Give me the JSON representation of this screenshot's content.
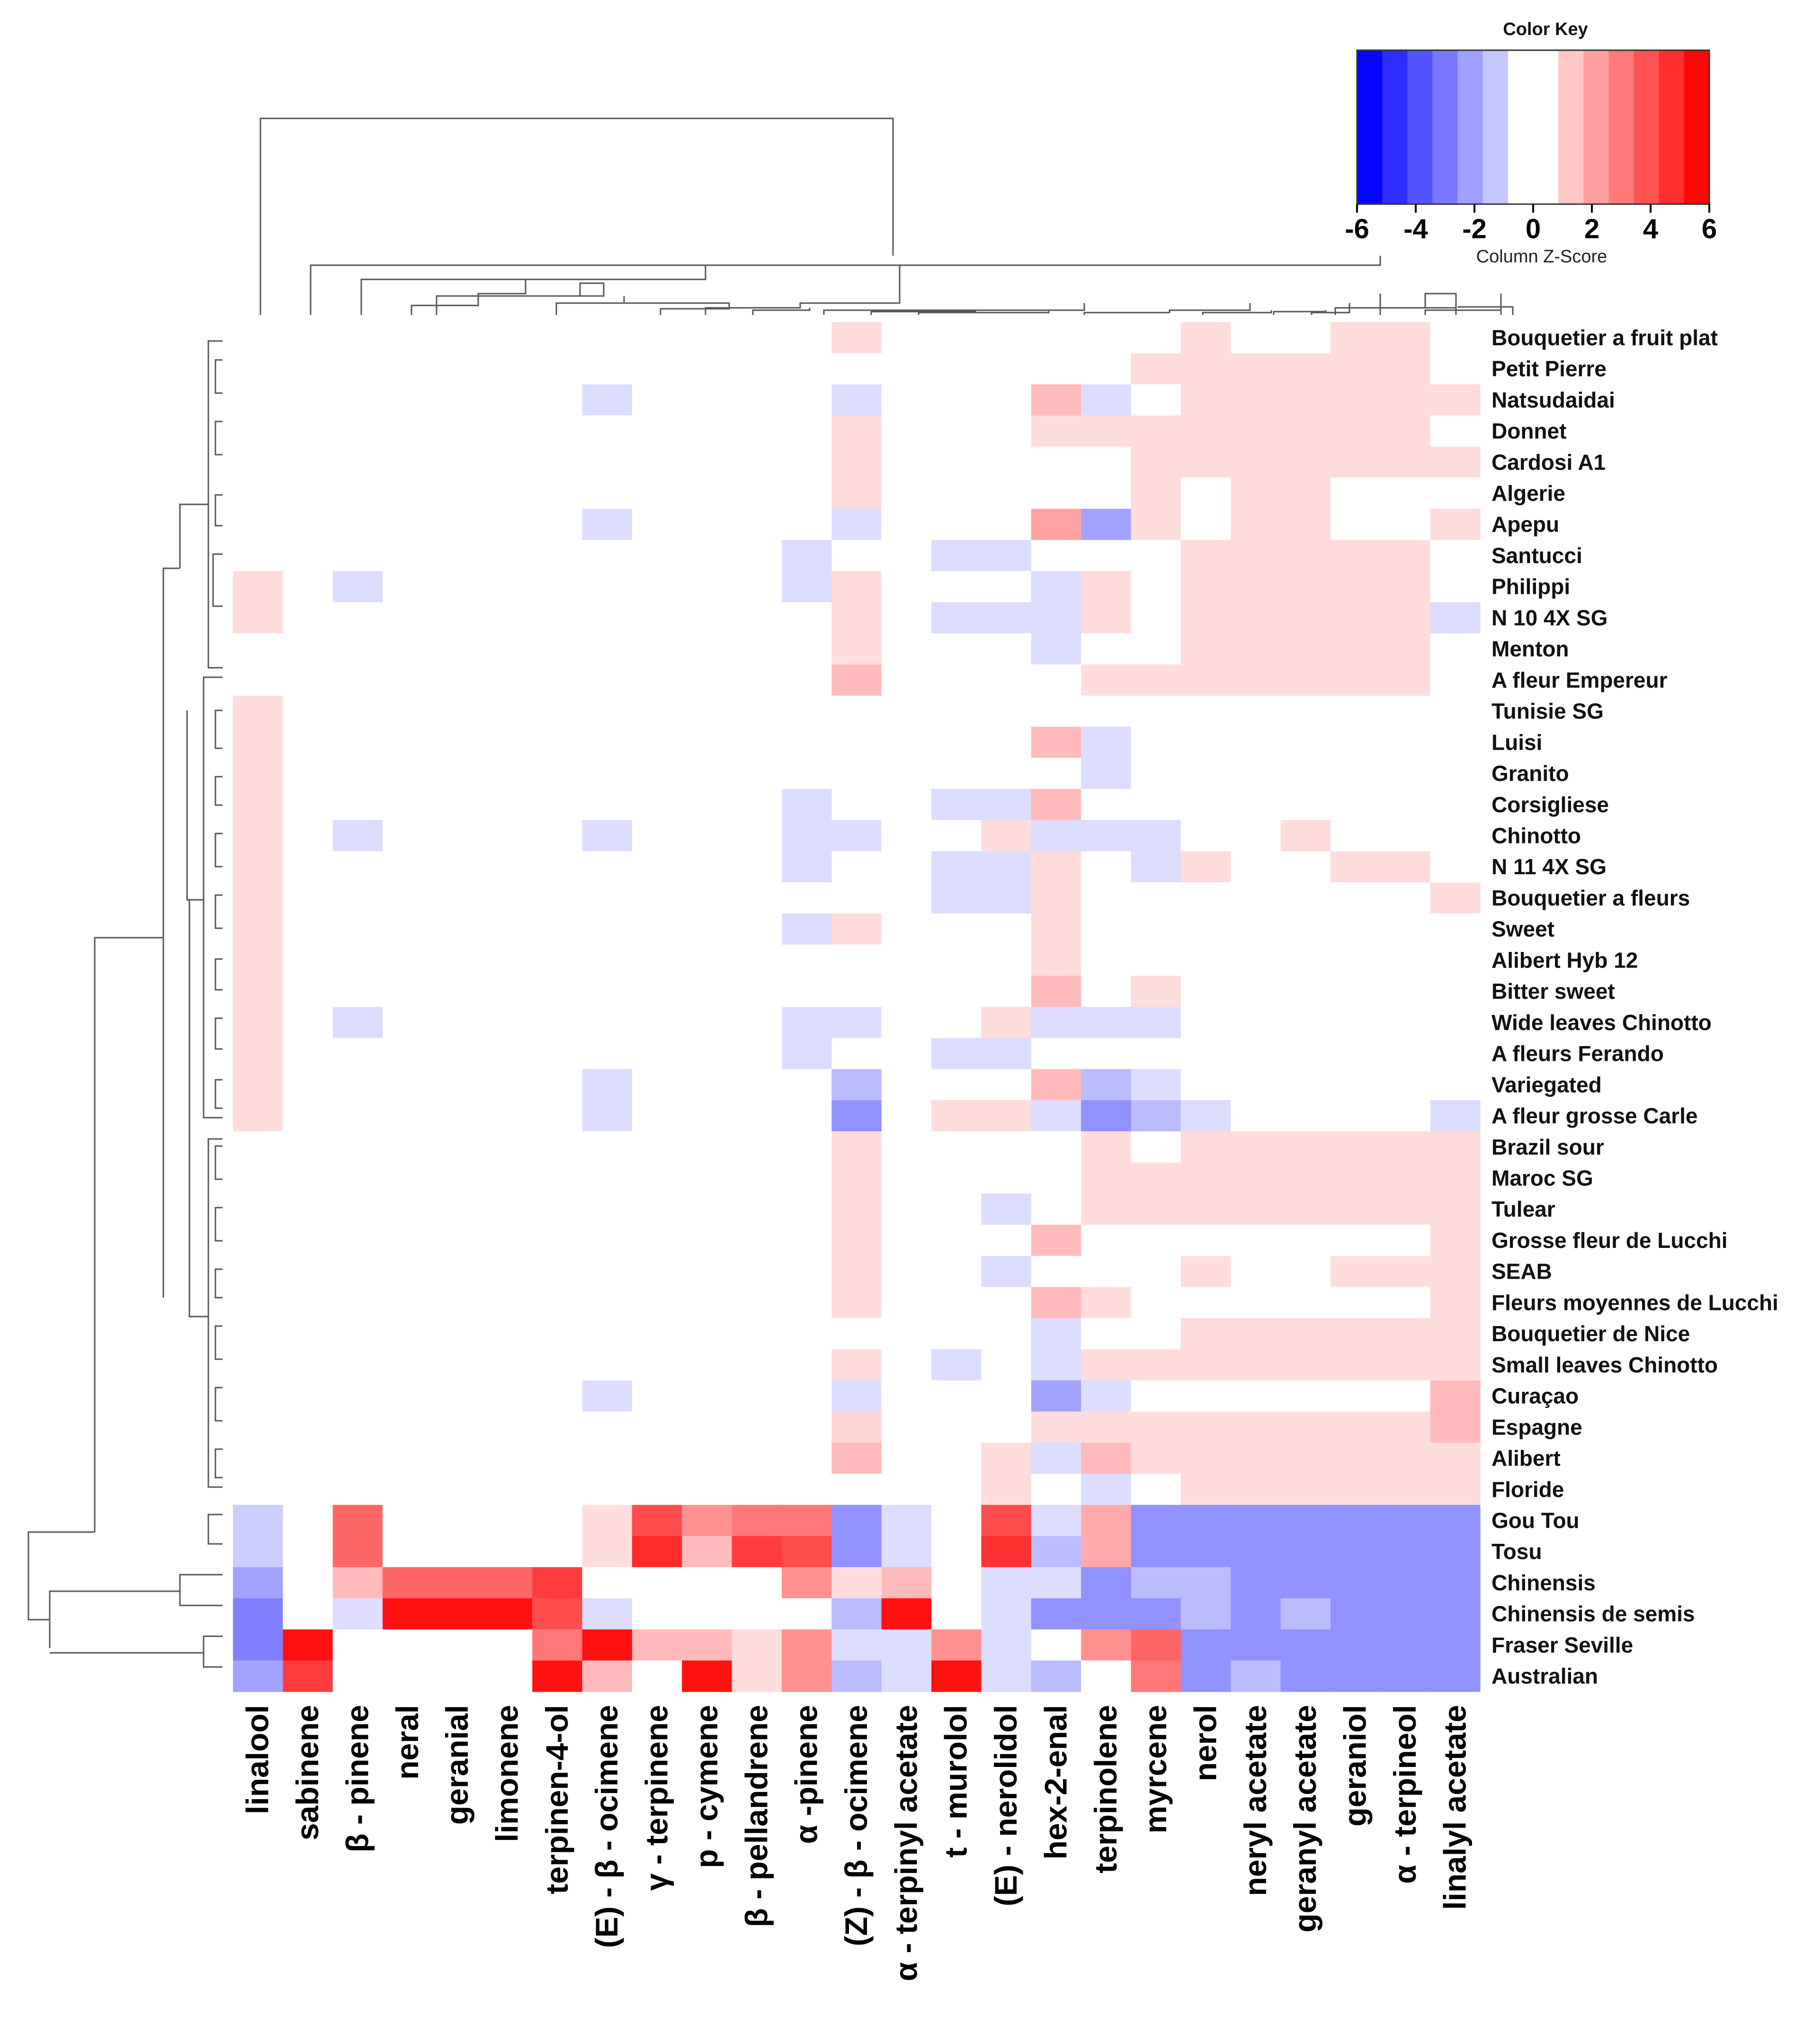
{
  "chart_data": {
    "type": "heatmap",
    "title": "",
    "xlabel": "",
    "ylabel": "",
    "columns": [
      "linalool",
      "sabinene",
      "β - pinene",
      "neral",
      "geranial",
      "limonene",
      "terpinen-4-ol",
      "(E) - β - ocimene",
      "γ - terpinene",
      "p - cymene",
      "β - pellandrene",
      "α -pinene",
      "(Z) - β - ocimene",
      "α - terpinyl acetate",
      "t - murolol",
      "(E) - nerolidol",
      "hex-2-enal",
      "terpinolene",
      "myrcene",
      "nerol",
      "neryl acetate",
      "geranyl acetate",
      "geraniol",
      "α - terpineol",
      "linalyl acetate"
    ],
    "rows": [
      "Bouquetier a fruit plat",
      "Petit Pierre",
      "Natsudaidai",
      "Donnet",
      "Cardosi A1",
      "Algerie",
      "Apepu",
      "Santucci",
      "Philippi",
      "N 10 4X SG",
      "Menton",
      "A fleur Empereur",
      "Tunisie SG",
      "Luisi",
      "Granito",
      "Corsigliese",
      "Chinotto",
      "N 11 4X SG",
      "Bouquetier a fleurs",
      "Sweet",
      "Alibert Hyb 12",
      "Bitter sweet",
      "Wide leaves Chinotto",
      "A fleurs Ferando",
      "Variegated",
      "A fleur grosse Carle",
      "Brazil sour",
      "Maroc SG",
      "Tulear",
      "Grosse fleur de Lucchi",
      "SEAB",
      "Fleurs moyennes de Lucchi",
      "Bouquetier de Nice",
      "Small leaves Chinotto",
      "Curaçao",
      "Espagne",
      "Alibert",
      "Floride",
      "Gou Tou",
      "Tosu",
      "Chinensis",
      "Chinensis de semis",
      "Fraser Seville",
      "Australian"
    ],
    "values": [
      [
        0,
        0,
        0,
        0,
        0,
        0,
        0,
        0,
        0,
        0,
        0,
        0,
        0.8,
        0,
        0,
        0,
        0,
        0,
        0,
        0.8,
        0,
        0,
        0.8,
        0.8,
        0
      ],
      [
        0,
        0,
        0,
        0,
        0,
        0,
        0,
        0,
        0,
        0,
        0,
        0,
        0,
        0,
        0,
        0,
        0,
        0,
        0.8,
        0.8,
        0.8,
        0.8,
        0.8,
        0.8,
        0
      ],
      [
        0,
        0,
        0,
        0,
        0,
        0,
        0,
        -0.8,
        0,
        0,
        0,
        0,
        -0.8,
        0,
        0,
        0,
        1.6,
        -0.8,
        0,
        0.8,
        0.8,
        0.8,
        0.8,
        0.8,
        0.8
      ],
      [
        0,
        0,
        0,
        0,
        0,
        0,
        0,
        0,
        0,
        0,
        0,
        0,
        0.8,
        0,
        0,
        0,
        0.8,
        0.8,
        0.8,
        0.8,
        0.8,
        0.8,
        0.8,
        0.8,
        0
      ],
      [
        0,
        0,
        0,
        0,
        0,
        0,
        0,
        0,
        0,
        0,
        0,
        0,
        0.8,
        0,
        0,
        0,
        0,
        0,
        0.8,
        0.8,
        0.8,
        0.8,
        0.8,
        0.8,
        0.8
      ],
      [
        0,
        0,
        0,
        0,
        0,
        0,
        0,
        0,
        0,
        0,
        0,
        0,
        0.8,
        0,
        0,
        0,
        0,
        0,
        0.8,
        0,
        0.8,
        0.8,
        0,
        0,
        0
      ],
      [
        0,
        0,
        0,
        0,
        0,
        0,
        0,
        -0.8,
        0,
        0,
        0,
        0,
        -0.8,
        0,
        0,
        0,
        2.2,
        -2.2,
        0.8,
        0,
        0.8,
        0.8,
        0,
        0,
        0.8
      ],
      [
        0,
        0,
        0,
        0,
        0,
        0,
        0,
        0,
        0,
        0,
        0,
        -0.8,
        0,
        0,
        -0.8,
        -0.8,
        0,
        0,
        0,
        0.8,
        0.8,
        0.8,
        0.8,
        0.8,
        0
      ],
      [
        0.8,
        0,
        -0.8,
        0,
        0,
        0,
        0,
        0,
        0,
        0,
        0,
        -0.8,
        0.8,
        0,
        0,
        0,
        -0.8,
        0.8,
        0,
        0.8,
        0.8,
        0.8,
        0.8,
        0.8,
        0
      ],
      [
        0.8,
        0,
        0,
        0,
        0,
        0,
        0,
        0,
        0,
        0,
        0,
        0,
        0.8,
        0,
        -0.8,
        -0.8,
        -0.8,
        0.8,
        0,
        0.8,
        0.8,
        0.8,
        0.8,
        0.8,
        -0.8
      ],
      [
        0,
        0,
        0,
        0,
        0,
        0,
        0,
        0,
        0,
        0,
        0,
        0,
        0.8,
        0,
        0,
        0,
        -0.8,
        0,
        0,
        0.8,
        0.8,
        0.8,
        0.8,
        0.8,
        0
      ],
      [
        0,
        0,
        0,
        0,
        0,
        0,
        0,
        0,
        0,
        0,
        0,
        0,
        1.6,
        0,
        0,
        0,
        0,
        0.8,
        0.8,
        0.8,
        0.8,
        0.8,
        0.8,
        0.8,
        0
      ],
      [
        0.8,
        0,
        0,
        0,
        0,
        0,
        0,
        0,
        0,
        0,
        0,
        0,
        0,
        0,
        0,
        0,
        0,
        0,
        0,
        0,
        0,
        0,
        0,
        0,
        0
      ],
      [
        0.8,
        0,
        0,
        0,
        0,
        0,
        0,
        0,
        0,
        0,
        0,
        0,
        0,
        0,
        0,
        0,
        1.6,
        -0.8,
        0,
        0,
        0,
        0,
        0,
        0,
        0
      ],
      [
        0.8,
        0,
        0,
        0,
        0,
        0,
        0,
        0,
        0,
        0,
        0,
        0,
        0,
        0,
        0,
        0,
        0,
        -0.8,
        0,
        0,
        0,
        0,
        0,
        0,
        0
      ],
      [
        0.8,
        0,
        0,
        0,
        0,
        0,
        0,
        0,
        0,
        0,
        0,
        -0.8,
        0,
        0,
        -0.8,
        -0.8,
        1.6,
        0,
        0,
        0,
        0,
        0,
        0,
        0,
        0
      ],
      [
        0.8,
        0,
        -0.8,
        0,
        0,
        0,
        0,
        -0.8,
        0,
        0,
        0,
        -0.8,
        -0.8,
        0,
        0,
        0.8,
        -0.8,
        -0.8,
        -0.8,
        0,
        0,
        0.8,
        0,
        0,
        0
      ],
      [
        0.8,
        0,
        0,
        0,
        0,
        0,
        0,
        0,
        0,
        0,
        0,
        -0.8,
        0,
        0,
        -0.8,
        -0.8,
        0.8,
        0,
        -0.8,
        0.8,
        0,
        0,
        0.8,
        0.8,
        0
      ],
      [
        0.8,
        0,
        0,
        0,
        0,
        0,
        0,
        0,
        0,
        0,
        0,
        0,
        0,
        0,
        -0.8,
        -0.8,
        0.8,
        0,
        0,
        0,
        0,
        0,
        0,
        0,
        0.8
      ],
      [
        0.8,
        0,
        0,
        0,
        0,
        0,
        0,
        0,
        0,
        0,
        0,
        -0.8,
        0.8,
        0,
        0,
        0,
        0.8,
        0,
        0,
        0,
        0,
        0,
        0,
        0,
        0
      ],
      [
        0.8,
        0,
        0,
        0,
        0,
        0,
        0,
        0,
        0,
        0,
        0,
        0,
        0,
        0,
        0,
        0,
        0.8,
        0,
        0,
        0,
        0,
        0,
        0,
        0,
        0
      ],
      [
        0.8,
        0,
        0,
        0,
        0,
        0,
        0,
        0,
        0,
        0,
        0,
        0,
        0,
        0,
        0,
        0,
        1.6,
        0,
        0.8,
        0,
        0,
        0,
        0,
        0,
        0
      ],
      [
        0.8,
        0,
        -0.8,
        0,
        0,
        0,
        0,
        0,
        0,
        0,
        0,
        -0.8,
        -0.8,
        0,
        0,
        0.8,
        -0.8,
        -0.8,
        -0.8,
        0,
        0,
        0,
        0,
        0,
        0
      ],
      [
        0.8,
        0,
        0,
        0,
        0,
        0,
        0,
        0,
        0,
        0,
        0,
        -0.8,
        0,
        0,
        -0.8,
        -0.8,
        0,
        0,
        0,
        0,
        0,
        0,
        0,
        0,
        0
      ],
      [
        0.8,
        0,
        0,
        0,
        0,
        0,
        0,
        -0.8,
        0,
        0,
        0,
        0,
        -1.6,
        0,
        0,
        0,
        1.6,
        -1.6,
        -0.8,
        0,
        0,
        0,
        0,
        0,
        0
      ],
      [
        0.8,
        0,
        0,
        0,
        0,
        0,
        0,
        -0.8,
        0,
        0,
        0,
        0,
        -2.6,
        0,
        0.8,
        0.8,
        -0.8,
        -2.6,
        -1.6,
        -0.8,
        0,
        0,
        0,
        0,
        -0.8
      ],
      [
        0,
        0,
        0,
        0,
        0,
        0,
        0,
        0,
        0,
        0,
        0,
        0,
        0.8,
        0,
        0,
        0,
        0,
        0.8,
        0,
        0.8,
        0.8,
        0.8,
        0.8,
        0.8,
        0.8
      ],
      [
        0,
        0,
        0,
        0,
        0,
        0,
        0,
        0,
        0,
        0,
        0,
        0,
        0.8,
        0,
        0,
        0,
        0,
        0.8,
        0.8,
        0.8,
        0.8,
        0.8,
        0.8,
        0.8,
        0.8
      ],
      [
        0,
        0,
        0,
        0,
        0,
        0,
        0,
        0,
        0,
        0,
        0,
        0,
        0.8,
        0,
        0,
        -0.8,
        0,
        0.8,
        0.8,
        0.8,
        0.8,
        0.8,
        0.8,
        0.8,
        0.8
      ],
      [
        0,
        0,
        0,
        0,
        0,
        0,
        0,
        0,
        0,
        0,
        0,
        0,
        0.8,
        0,
        0,
        0,
        1.6,
        0,
        0,
        0,
        0,
        0,
        0,
        0,
        0.8
      ],
      [
        0,
        0,
        0,
        0,
        0,
        0,
        0,
        0,
        0,
        0,
        0,
        0,
        0.8,
        0,
        0,
        -0.8,
        0,
        0,
        0,
        0.8,
        0,
        0,
        0.8,
        0.8,
        0.8
      ],
      [
        0,
        0,
        0,
        0,
        0,
        0,
        0,
        0,
        0,
        0,
        0,
        0,
        0.8,
        0,
        0,
        0,
        1.6,
        0.8,
        0,
        0,
        0,
        0,
        0,
        0,
        0.8
      ],
      [
        0,
        0,
        0,
        0,
        0,
        0,
        0,
        0,
        0,
        0,
        0,
        0,
        0,
        0,
        0,
        0,
        -0.8,
        0,
        0,
        0.8,
        0.8,
        0.8,
        0.8,
        0.8,
        0.8
      ],
      [
        0,
        0,
        0,
        0,
        0,
        0,
        0,
        0,
        0,
        0,
        0,
        0,
        0.8,
        0,
        -0.8,
        0,
        -0.8,
        0.8,
        0.8,
        0.8,
        0.8,
        0.8,
        0.8,
        0.8,
        0.8
      ],
      [
        0,
        0,
        0,
        0,
        0,
        0,
        0,
        -0.8,
        0,
        0,
        0,
        0,
        -0.8,
        0,
        0,
        0,
        -2.2,
        -0.8,
        0,
        0,
        0,
        0,
        0,
        0,
        1.6
      ],
      [
        0,
        0,
        0,
        0,
        0,
        0,
        0,
        0,
        0,
        0,
        0,
        0,
        1.0,
        0,
        0,
        0,
        0.8,
        0.8,
        0.8,
        0.8,
        0.8,
        0.8,
        0.8,
        0.8,
        1.6
      ],
      [
        0,
        0,
        0,
        0,
        0,
        0,
        0,
        0,
        0,
        0,
        0,
        0,
        1.6,
        0,
        0,
        0.8,
        -0.8,
        1.6,
        0.8,
        0.8,
        0.8,
        0.8,
        0.8,
        0.8,
        0.8
      ],
      [
        0,
        0,
        0,
        0,
        0,
        0,
        0,
        0,
        0,
        0,
        0,
        0,
        0,
        0,
        0,
        0.8,
        0,
        -0.8,
        0,
        0.8,
        0.8,
        0.8,
        0.8,
        0.8,
        0.8
      ],
      [
        -1.2,
        0,
        3.6,
        0,
        0,
        0,
        0,
        0.8,
        4.2,
        2.6,
        3.2,
        3.2,
        -2.6,
        -0.8,
        0,
        4.2,
        -0.8,
        2.0,
        -2.6,
        -2.6,
        -2.6,
        -2.6,
        -2.6,
        -2.6,
        -2.6
      ],
      [
        -1.2,
        0,
        3.6,
        0,
        0,
        0,
        0,
        0.8,
        5.0,
        1.6,
        4.6,
        4.2,
        -2.6,
        -0.8,
        0,
        4.8,
        -1.6,
        2.0,
        -2.6,
        -2.6,
        -2.6,
        -2.6,
        -2.6,
        -2.6,
        -2.6
      ],
      [
        -2.2,
        0,
        1.6,
        3.6,
        3.6,
        3.6,
        4.6,
        0,
        0,
        0,
        0,
        2.6,
        0.8,
        1.6,
        0,
        -0.8,
        -0.8,
        -2.6,
        -1.6,
        -1.6,
        -2.6,
        -2.6,
        -2.6,
        -2.6,
        -2.6
      ],
      [
        -3.0,
        0,
        -0.8,
        5.6,
        5.6,
        5.6,
        4.2,
        -0.8,
        0,
        0,
        0,
        0,
        -1.6,
        5.6,
        0,
        -0.8,
        -2.6,
        -2.6,
        -2.6,
        -1.6,
        -2.6,
        -1.6,
        -2.6,
        -2.6,
        -2.6
      ],
      [
        -3.0,
        5.6,
        0,
        0,
        0,
        0,
        3.2,
        5.6,
        1.6,
        1.6,
        0.8,
        2.6,
        -0.8,
        -0.8,
        2.6,
        -0.8,
        0,
        2.6,
        3.6,
        -2.6,
        -2.6,
        -2.6,
        -2.6,
        -2.6,
        -2.6
      ],
      [
        -2.2,
        4.6,
        0,
        0,
        0,
        0,
        5.6,
        1.6,
        0,
        5.6,
        0.8,
        2.6,
        -1.6,
        -0.8,
        5.6,
        -0.8,
        -1.6,
        0,
        3.2,
        -2.6,
        -1.6,
        -2.6,
        -2.6,
        -2.6,
        -2.6
      ]
    ],
    "color_key": {
      "title": "Color Key",
      "xlabel": "Column Z-Score",
      "range": [
        -6,
        6
      ],
      "ticks": [
        "-6",
        "-4",
        "-2",
        "0",
        "2",
        "4",
        "6"
      ],
      "low_color": "#0000ff",
      "mid_color": "#ffffff",
      "high_color": "#ff0000",
      "bins": 14
    }
  }
}
